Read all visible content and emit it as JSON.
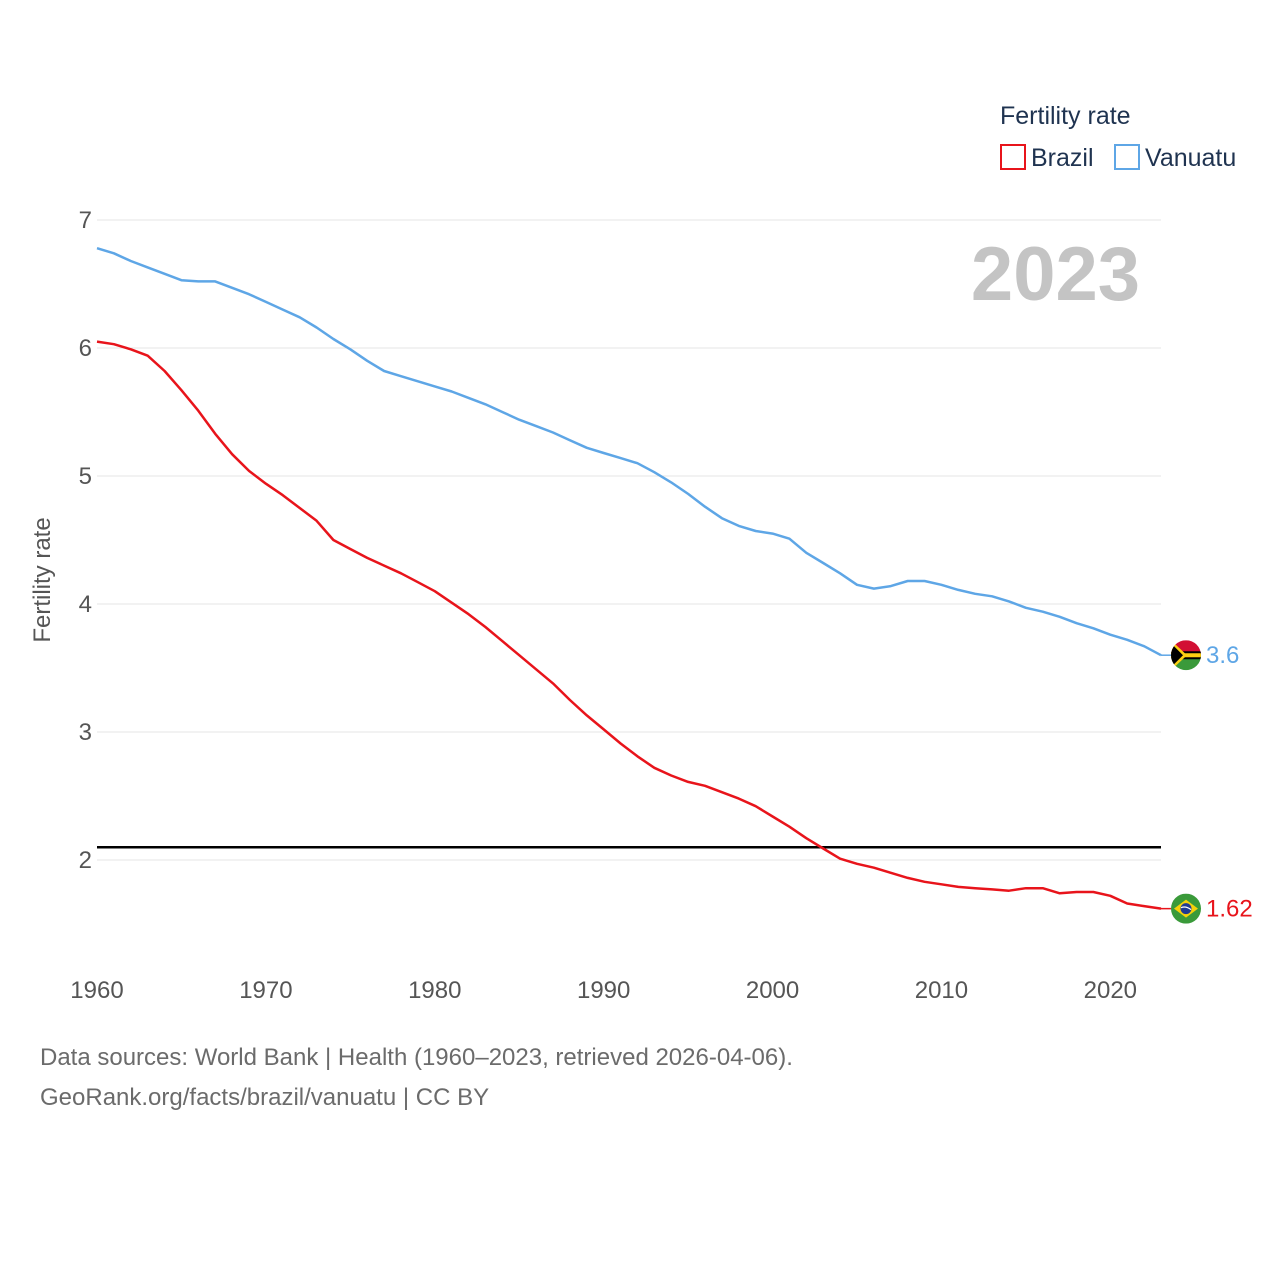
{
  "chart_data": {
    "type": "line",
    "title": "",
    "ylabel": "Fertility rate",
    "xlabel": "",
    "xlim": [
      1960,
      2023
    ],
    "ylim": [
      1.3,
      7
    ],
    "x_ticks": [
      1960,
      1970,
      1980,
      1990,
      2000,
      2010,
      2020
    ],
    "y_ticks": [
      2,
      3,
      4,
      5,
      6,
      7
    ],
    "grid": true,
    "year_label": "2023",
    "reference_line": {
      "y": 2.1,
      "color": "#000000"
    },
    "legend": {
      "title": "Fertility rate",
      "position": "top-right"
    },
    "x": [
      1960,
      1961,
      1962,
      1963,
      1964,
      1965,
      1966,
      1967,
      1968,
      1969,
      1970,
      1971,
      1972,
      1973,
      1974,
      1975,
      1976,
      1977,
      1978,
      1979,
      1980,
      1981,
      1982,
      1983,
      1984,
      1985,
      1986,
      1987,
      1988,
      1989,
      1990,
      1991,
      1992,
      1993,
      1994,
      1995,
      1996,
      1997,
      1998,
      1999,
      2000,
      2001,
      2002,
      2003,
      2004,
      2005,
      2006,
      2007,
      2008,
      2009,
      2010,
      2011,
      2012,
      2013,
      2014,
      2015,
      2016,
      2017,
      2018,
      2019,
      2020,
      2021,
      2022,
      2023
    ],
    "series": [
      {
        "name": "Brazil",
        "color": "#e8141b",
        "end_label": "1.62",
        "flag": "brazil-flag",
        "values": [
          6.05,
          6.03,
          5.99,
          5.94,
          5.82,
          5.67,
          5.51,
          5.33,
          5.17,
          5.04,
          4.94,
          4.85,
          4.75,
          4.65,
          4.5,
          4.43,
          4.36,
          4.3,
          4.24,
          4.17,
          4.1,
          4.01,
          3.92,
          3.82,
          3.71,
          3.6,
          3.49,
          3.38,
          3.25,
          3.13,
          3.02,
          2.91,
          2.81,
          2.72,
          2.66,
          2.61,
          2.58,
          2.53,
          2.48,
          2.42,
          2.34,
          2.26,
          2.17,
          2.09,
          2.01,
          1.97,
          1.94,
          1.9,
          1.86,
          1.83,
          1.81,
          1.79,
          1.78,
          1.77,
          1.76,
          1.78,
          1.78,
          1.74,
          1.75,
          1.75,
          1.72,
          1.66,
          1.64,
          1.62
        ]
      },
      {
        "name": "Vanuatu",
        "color": "#5ea6e6",
        "end_label": "3.6",
        "flag": "vanuatu-flag",
        "values": [
          6.78,
          6.74,
          6.68,
          6.63,
          6.58,
          6.53,
          6.52,
          6.52,
          6.47,
          6.42,
          6.36,
          6.3,
          6.24,
          6.16,
          6.07,
          5.99,
          5.9,
          5.82,
          5.78,
          5.74,
          5.7,
          5.66,
          5.61,
          5.56,
          5.5,
          5.44,
          5.39,
          5.34,
          5.28,
          5.22,
          5.18,
          5.14,
          5.1,
          5.03,
          4.95,
          4.86,
          4.76,
          4.67,
          4.61,
          4.57,
          4.55,
          4.51,
          4.4,
          4.32,
          4.24,
          4.15,
          4.12,
          4.14,
          4.18,
          4.18,
          4.15,
          4.11,
          4.08,
          4.06,
          4.02,
          3.97,
          3.94,
          3.9,
          3.85,
          3.81,
          3.76,
          3.72,
          3.67,
          3.6
        ]
      }
    ]
  },
  "footer": {
    "sources": "Data sources: World Bank | Health (1960–2023, retrieved 2026-04-06).",
    "credit": "GeoRank.org/facts/brazil/vanuatu | CC BY"
  }
}
